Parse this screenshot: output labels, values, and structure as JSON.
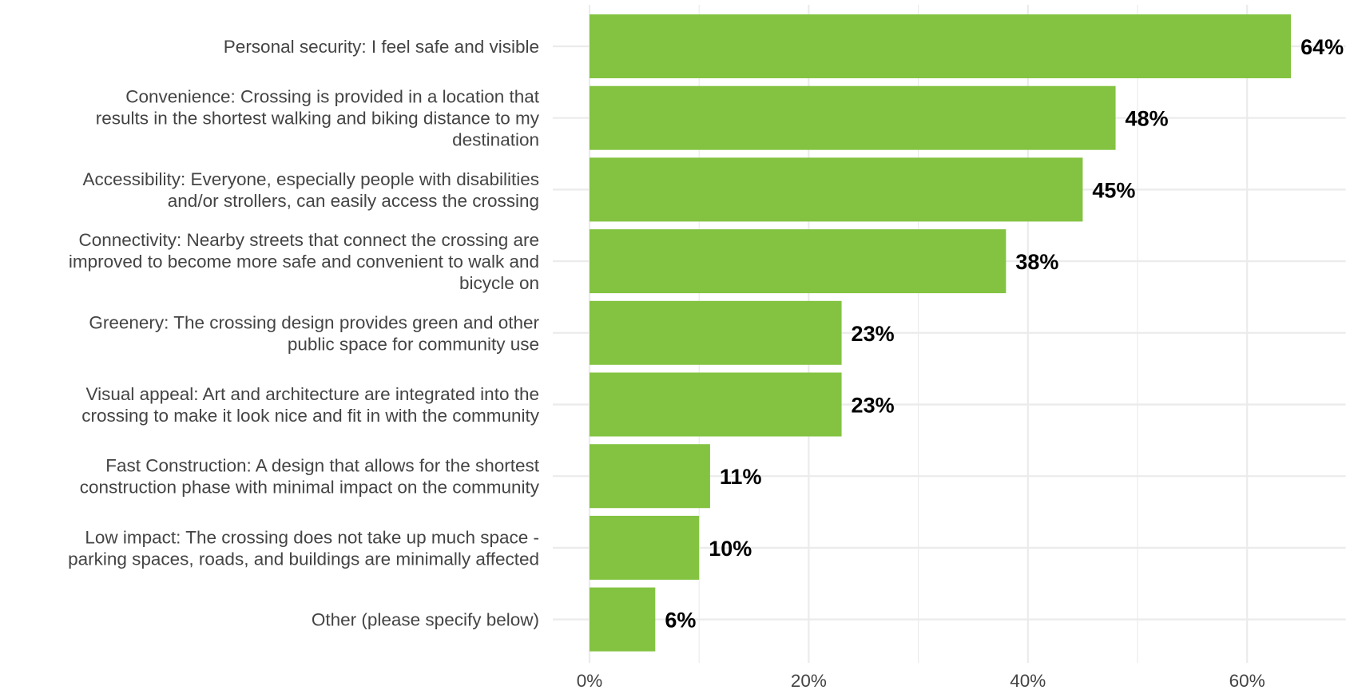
{
  "chart_data": {
    "type": "bar",
    "orientation": "horizontal",
    "title": "",
    "xlabel": "",
    "ylabel": "",
    "categories": [
      "Personal security: I feel safe and visible",
      "Convenience: Crossing is provided in a location that results in the shortest walking and biking distance to my destination",
      "Accessibility: Everyone, especially people with disabilities and/or strollers, can easily access the crossing",
      "Connectivity: Nearby streets that connect the crossing are improved to become more safe and convenient to walk and bicycle on",
      "Greenery: The crossing design provides green and other public space for community use",
      "Visual appeal: Art and architecture are integrated into the crossing to make it look nice and fit in with the community",
      "Fast Construction: A design that allows for the shortest construction phase with minimal impact on the community",
      "Low impact: The crossing does not take up much space - parking spaces, roads, and buildings are minimally affected",
      "Other (please specify below)"
    ],
    "category_lines": [
      [
        "Personal security: I feel safe and visible"
      ],
      [
        "Convenience: Crossing is provided in a location that",
        "results in the shortest walking and biking distance to my",
        "destination"
      ],
      [
        "Accessibility: Everyone, especially people with disabilities",
        "and/or strollers, can easily access the crossing"
      ],
      [
        "Connectivity: Nearby streets that connect the crossing are",
        "improved to become more safe and convenient to walk and",
        "bicycle on"
      ],
      [
        "Greenery: The crossing design provides green and other",
        "public space for community use"
      ],
      [
        "Visual appeal: Art and architecture are integrated into the",
        "crossing to make it look nice and fit in with the community"
      ],
      [
        "Fast Construction: A design that allows for the shortest",
        "construction phase with minimal impact on the community"
      ],
      [
        "Low impact: The crossing does not take up much space -",
        "parking spaces, roads, and buildings are minimally affected"
      ],
      [
        "Other (please specify below)"
      ]
    ],
    "values": [
      64,
      48,
      45,
      38,
      23,
      23,
      11,
      10,
      6
    ],
    "data_labels": [
      "64%",
      "48%",
      "45%",
      "38%",
      "23%",
      "23%",
      "11%",
      "10%",
      "6%"
    ],
    "xlim": [
      0,
      69
    ],
    "x_ticks": [
      0,
      20,
      40,
      60
    ],
    "x_tick_labels": [
      "0%",
      "20%",
      "40%",
      "60%"
    ],
    "grid": true,
    "legend": "none",
    "colors": {
      "bar": "#83c341",
      "grid": "#ebebeb",
      "label": "#444444",
      "value_label": "#000000"
    }
  }
}
